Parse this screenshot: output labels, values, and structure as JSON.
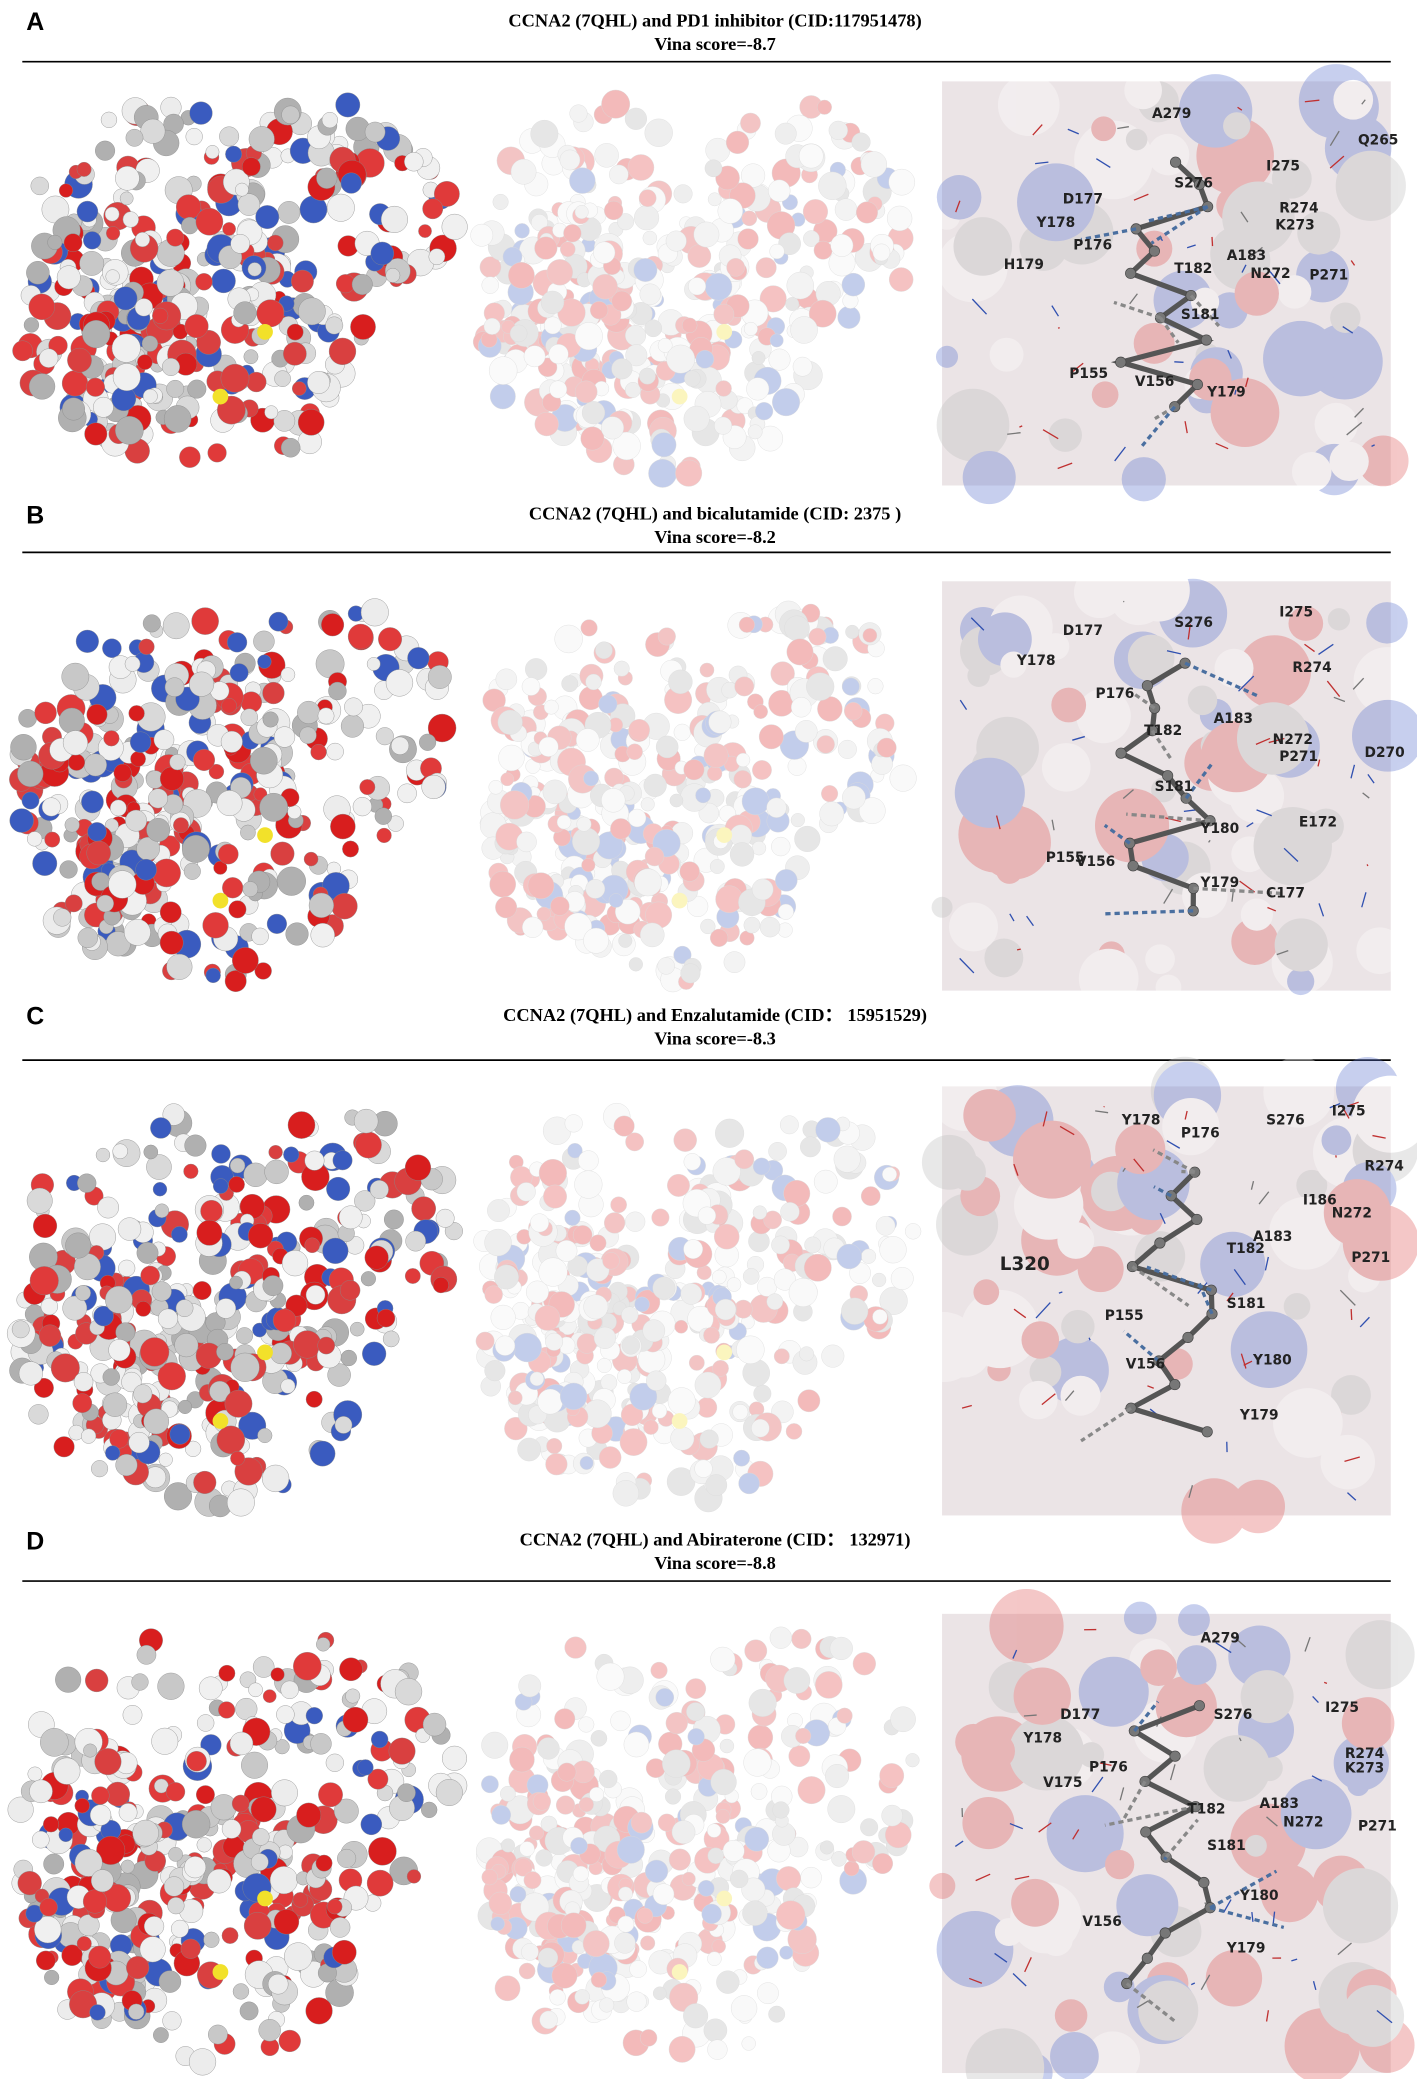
{
  "panels": [
    {
      "letter": "A",
      "title": "CCNA2 (7QHL) and PD1 inhibitor (CID:117951478)",
      "score": "Vina score=-8.7",
      "residues": [
        "A279",
        "Q265",
        "I275",
        "S276",
        "D177",
        "R274",
        "Y178",
        "K273",
        "P176",
        "A183",
        "H179",
        "T182",
        "N272",
        "P271",
        "S181",
        "P155",
        "V156",
        "Y179"
      ]
    },
    {
      "letter": "B",
      "title": "CCNA2 (7QHL) and bicalutamide (CID: 2375 )",
      "score": "Vina score=-8.2",
      "residues": [
        "D177",
        "S276",
        "I275",
        "Y178",
        "R274",
        "P176",
        "T182",
        "A183",
        "N272",
        "P271",
        "D270",
        "S181",
        "Y180",
        "E172",
        "P155",
        "V156",
        "Y179",
        "C177"
      ]
    },
    {
      "letter": "C",
      "title": "CCNA2 (7QHL) and Enzalutamide (CID： 15951529)",
      "score": "Vina score=-8.3",
      "residues": [
        "Y178",
        "P176",
        "S276",
        "I275",
        "R274",
        "I186",
        "N272",
        "A183",
        "T182",
        "P271",
        "L320",
        "S181",
        "P155",
        "V156",
        "Y180",
        "Y179"
      ]
    },
    {
      "letter": "D",
      "title": "CCNA2 (7QHL) and Abiraterone (CID： 132971)",
      "score": "Vina score=-8.8",
      "residues": [
        "A279",
        "D177",
        "S276",
        "I275",
        "Y178",
        "R274",
        "K273",
        "P176",
        "V175",
        "A183",
        "T182",
        "N272",
        "P271",
        "S181",
        "Y180",
        "V156",
        "Y179"
      ]
    }
  ]
}
